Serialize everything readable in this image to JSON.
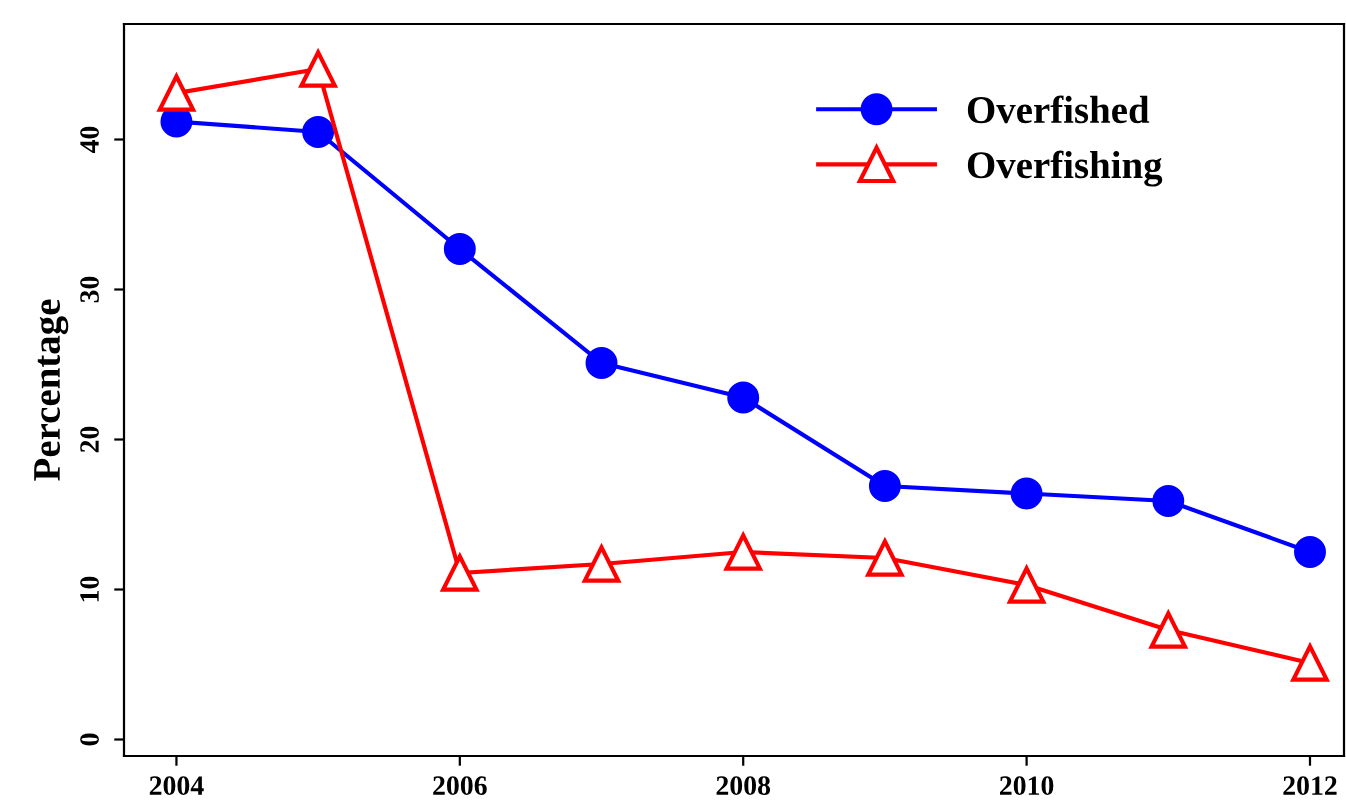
{
  "chart_data": {
    "type": "line",
    "ylabel": "Percentage",
    "x": [
      2004,
      2005,
      2006,
      2007,
      2008,
      2009,
      2010,
      2011,
      2012
    ],
    "series": [
      {
        "name": "Overfished",
        "color": "#0000ff",
        "marker": "circle",
        "values": [
          41.2,
          40.5,
          32.7,
          25.1,
          22.8,
          16.9,
          16.4,
          15.9,
          12.5
        ]
      },
      {
        "name": "Overfishing",
        "color": "#ff0000",
        "marker": "triangle",
        "values": [
          43.1,
          44.7,
          11.1,
          11.7,
          12.5,
          12.1,
          10.3,
          7.3,
          5.1
        ]
      }
    ],
    "xlim": [
      2003.63,
      2012.24
    ],
    "ylim": [
      -1.1,
      47.7
    ],
    "xticks": [
      2004,
      2006,
      2008,
      2010,
      2012
    ],
    "yticks": [
      0,
      10,
      20,
      30,
      40
    ],
    "grid": false,
    "legend": "top right",
    "line_style": "solid"
  }
}
